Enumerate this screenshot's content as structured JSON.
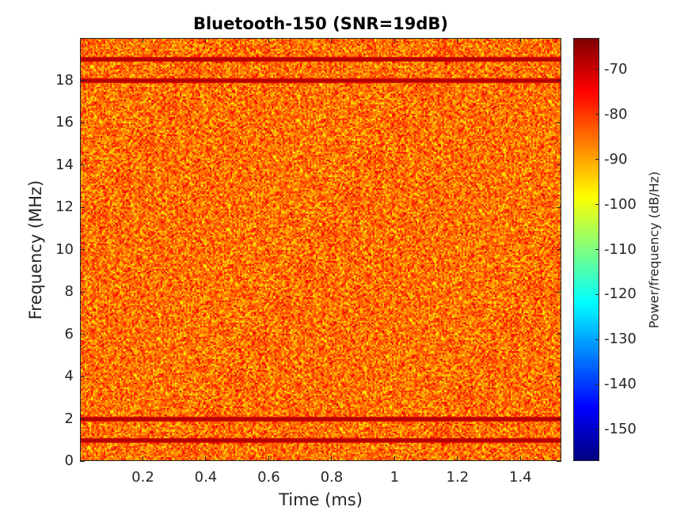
{
  "chart_data": {
    "type": "heatmap",
    "title": "Bluetooth-150 (SNR=19dB)",
    "xlabel": "Time (ms)",
    "ylabel": "Frequency (MHz)",
    "colorbar_label": "Power/frequency (dB/Hz)",
    "xlim": [
      0,
      1.53
    ],
    "ylim": [
      0,
      20
    ],
    "clim": [
      -157,
      -63
    ],
    "x_ticks": [
      0.2,
      0.4,
      0.6,
      0.8,
      1,
      1.2,
      1.4
    ],
    "x_tick_labels": [
      "0.2",
      "0.4",
      "0.6",
      "0.8",
      "1",
      "1.2",
      "1.4"
    ],
    "y_ticks": [
      0,
      2,
      4,
      6,
      8,
      10,
      12,
      14,
      16,
      18
    ],
    "y_tick_labels": [
      "0",
      "2",
      "4",
      "6",
      "8",
      "10",
      "12",
      "14",
      "16",
      "18"
    ],
    "c_ticks": [
      -70,
      -80,
      -90,
      -100,
      -110,
      -120,
      -130,
      -140,
      -150
    ],
    "c_tick_labels": [
      "-70",
      "-80",
      "-90",
      "-100",
      "-110",
      "-120",
      "-130",
      "-140",
      "-150"
    ],
    "colormap": "jet",
    "background_level_db": -85,
    "background_spread_db": 6,
    "carrier_lines_mhz": [
      1,
      2,
      18,
      19
    ],
    "carrier_level_db": -66
  }
}
